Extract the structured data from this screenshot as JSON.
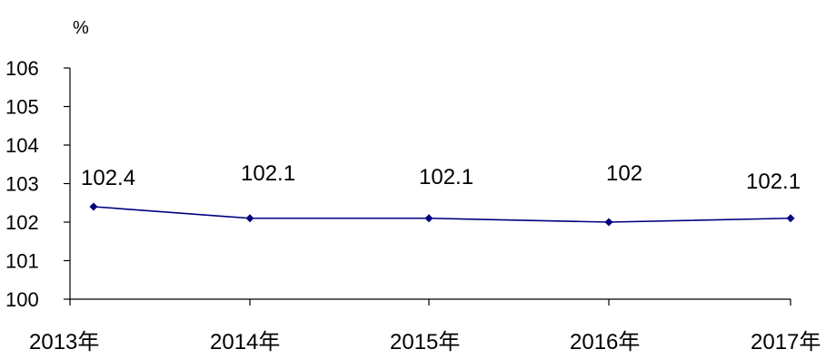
{
  "chart_data": {
    "type": "line",
    "ylabel": "%",
    "categories": [
      "2013年",
      "2014年",
      "2015年",
      "2016年",
      "2017年"
    ],
    "series": [
      {
        "values": [
          102.4,
          102.1,
          102.1,
          102.0,
          102.1
        ],
        "color": "#000080"
      }
    ],
    "data_labels": [
      "102.4",
      "102.1",
      "102.1",
      "102",
      "102.1"
    ],
    "ylim": [
      100,
      106
    ],
    "yticks": [
      100,
      101,
      102,
      103,
      104,
      105,
      106
    ],
    "ytick_labels": [
      "100",
      "101",
      "102",
      "103",
      "104",
      "105",
      "106"
    ],
    "grid": false,
    "legend": "none",
    "axis_color": "#000000"
  }
}
